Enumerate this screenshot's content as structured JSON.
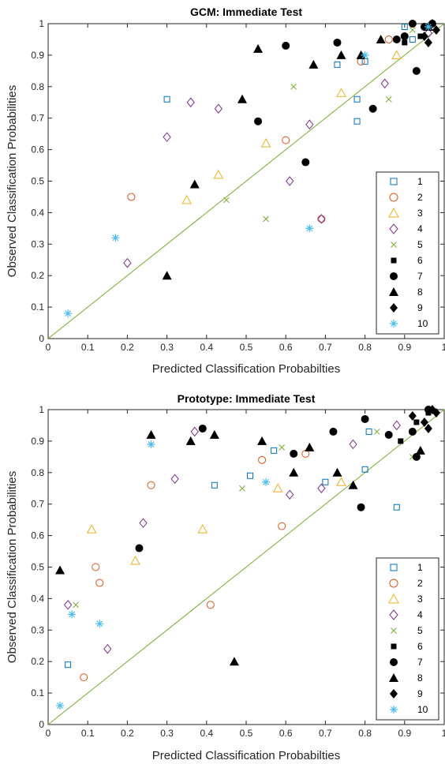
{
  "figure": {
    "background": "#ffffff"
  },
  "chart_data": [
    {
      "type": "scatter",
      "title": "GCM: Immediate Test",
      "xlabel": "Predicted Classification Probabilties",
      "ylabel": "Observed Classification Probabilities",
      "xlim": [
        0,
        1
      ],
      "ylim": [
        0,
        1
      ],
      "xticks": [
        "0",
        "0.1",
        "0.2",
        "0.3",
        "0.4",
        "0.5",
        "0.6",
        "0.7",
        "0.8",
        "0.9",
        "1"
      ],
      "yticks": [
        "0",
        "0.1",
        "0.2",
        "0.3",
        "0.4",
        "0.5",
        "0.6",
        "0.7",
        "0.8",
        "0.9",
        "1"
      ],
      "grid": false,
      "legend_position": "lower-right",
      "identity_line": {
        "from": [
          0,
          0
        ],
        "to": [
          1,
          1
        ],
        "color": "#77ac30"
      },
      "series": [
        {
          "name": "1",
          "marker": "square",
          "color": "#0072bd",
          "points": [
            [
              0.3,
              0.76
            ],
            [
              0.78,
              0.69
            ],
            [
              0.73,
              0.87
            ],
            [
              0.9,
              0.99
            ],
            [
              0.78,
              0.76
            ],
            [
              0.8,
              0.88
            ],
            [
              0.92,
              0.95
            ]
          ]
        },
        {
          "name": "2",
          "marker": "circle",
          "color": "#d95319",
          "points": [
            [
              0.21,
              0.45
            ],
            [
              0.6,
              0.63
            ],
            [
              0.69,
              0.38
            ],
            [
              0.86,
              0.95
            ],
            [
              0.79,
              0.88
            ]
          ]
        },
        {
          "name": "3",
          "marker": "triangle",
          "color": "#edb120",
          "points": [
            [
              0.35,
              0.44
            ],
            [
              0.43,
              0.52
            ],
            [
              0.55,
              0.62
            ],
            [
              0.74,
              0.78
            ],
            [
              0.88,
              0.9
            ]
          ]
        },
        {
          "name": "4",
          "marker": "diamond",
          "color": "#7e2f8e",
          "points": [
            [
              0.36,
              0.75
            ],
            [
              0.43,
              0.73
            ],
            [
              0.2,
              0.24
            ],
            [
              0.3,
              0.64
            ],
            [
              0.69,
              0.38
            ],
            [
              0.66,
              0.68
            ],
            [
              0.61,
              0.5
            ],
            [
              0.85,
              0.81
            ],
            [
              0.96,
              0.97
            ]
          ]
        },
        {
          "name": "5",
          "marker": "x",
          "color": "#77ac30",
          "points": [
            [
              0.55,
              0.38
            ],
            [
              0.62,
              0.8
            ],
            [
              0.86,
              0.76
            ],
            [
              0.92,
              0.98
            ],
            [
              0.45,
              0.44
            ]
          ]
        },
        {
          "name": "6",
          "marker": "filled-square",
          "color": "#000000",
          "points": [
            [
              0.96,
              0.99
            ],
            [
              0.9,
              0.94
            ],
            [
              0.94,
              0.96
            ]
          ]
        },
        {
          "name": "7",
          "marker": "filled-circle",
          "color": "#000000",
          "points": [
            [
              0.6,
              0.93
            ],
            [
              0.73,
              0.94
            ],
            [
              0.92,
              1.0
            ],
            [
              0.93,
              0.85
            ],
            [
              0.82,
              0.73
            ],
            [
              0.88,
              0.95
            ],
            [
              0.95,
              0.99
            ],
            [
              0.53,
              0.69
            ],
            [
              0.65,
              0.56
            ],
            [
              0.9,
              0.96
            ],
            [
              0.97,
              1.0
            ]
          ]
        },
        {
          "name": "8",
          "marker": "filled-triangle",
          "color": "#000000",
          "points": [
            [
              0.53,
              0.92
            ],
            [
              0.49,
              0.76
            ],
            [
              0.67,
              0.87
            ],
            [
              0.79,
              0.9
            ],
            [
              0.84,
              0.95
            ],
            [
              0.37,
              0.49
            ],
            [
              0.3,
              0.2
            ],
            [
              0.74,
              0.9
            ],
            [
              0.96,
              0.99
            ]
          ]
        },
        {
          "name": "9",
          "marker": "filled-diamond",
          "color": "#000000",
          "points": [
            [
              0.95,
              0.96
            ],
            [
              0.97,
              1.0
            ],
            [
              0.98,
              0.98
            ],
            [
              0.96,
              0.94
            ]
          ]
        },
        {
          "name": "10",
          "marker": "asterisk",
          "color": "#4dbeee",
          "points": [
            [
              0.17,
              0.32
            ],
            [
              0.66,
              0.35
            ],
            [
              0.05,
              0.08
            ],
            [
              0.8,
              0.9
            ],
            [
              0.96,
              0.99
            ]
          ]
        }
      ]
    },
    {
      "type": "scatter",
      "title": "Prototype: Immediate Test",
      "xlabel": "Predicted Classification Probabilties",
      "ylabel": "Observed Classification Probabilities",
      "xlim": [
        0,
        1
      ],
      "ylim": [
        0,
        1
      ],
      "xticks": [
        "0",
        "0.1",
        "0.2",
        "0.3",
        "0.4",
        "0.5",
        "0.6",
        "0.7",
        "0.8",
        "0.9",
        "1"
      ],
      "yticks": [
        "0",
        "0.1",
        "0.2",
        "0.3",
        "0.4",
        "0.5",
        "0.6",
        "0.7",
        "0.8",
        "0.9",
        "1"
      ],
      "grid": false,
      "legend_position": "lower-right",
      "identity_line": {
        "from": [
          0,
          0
        ],
        "to": [
          1,
          1
        ],
        "color": "#77ac30"
      },
      "series": [
        {
          "name": "1",
          "marker": "square",
          "color": "#0072bd",
          "points": [
            [
              0.05,
              0.19
            ],
            [
              0.42,
              0.76
            ],
            [
              0.51,
              0.79
            ],
            [
              0.7,
              0.77
            ],
            [
              0.88,
              0.69
            ],
            [
              0.57,
              0.87
            ],
            [
              0.8,
              0.81
            ],
            [
              0.81,
              0.93
            ]
          ]
        },
        {
          "name": "2",
          "marker": "circle",
          "color": "#d95319",
          "points": [
            [
              0.12,
              0.5
            ],
            [
              0.26,
              0.76
            ],
            [
              0.41,
              0.38
            ],
            [
              0.54,
              0.84
            ],
            [
              0.59,
              0.63
            ],
            [
              0.09,
              0.15
            ],
            [
              0.13,
              0.45
            ],
            [
              0.65,
              0.86
            ]
          ]
        },
        {
          "name": "3",
          "marker": "triangle",
          "color": "#edb120",
          "points": [
            [
              0.11,
              0.62
            ],
            [
              0.22,
              0.52
            ],
            [
              0.39,
              0.62
            ],
            [
              0.58,
              0.75
            ],
            [
              0.74,
              0.77
            ]
          ]
        },
        {
          "name": "4",
          "marker": "diamond",
          "color": "#7e2f8e",
          "points": [
            [
              0.05,
              0.38
            ],
            [
              0.15,
              0.24
            ],
            [
              0.24,
              0.64
            ],
            [
              0.32,
              0.78
            ],
            [
              0.37,
              0.93
            ],
            [
              0.61,
              0.73
            ],
            [
              0.69,
              0.75
            ],
            [
              0.77,
              0.89
            ],
            [
              0.88,
              0.95
            ]
          ]
        },
        {
          "name": "5",
          "marker": "x",
          "color": "#77ac30",
          "points": [
            [
              0.07,
              0.38
            ],
            [
              0.49,
              0.75
            ],
            [
              0.59,
              0.88
            ],
            [
              0.83,
              0.93
            ],
            [
              0.92,
              0.85
            ]
          ]
        },
        {
          "name": "6",
          "marker": "filled-square",
          "color": "#000000",
          "points": [
            [
              0.93,
              0.96
            ],
            [
              0.96,
              0.99
            ],
            [
              0.89,
              0.9
            ]
          ]
        },
        {
          "name": "7",
          "marker": "filled-circle",
          "color": "#000000",
          "points": [
            [
              0.23,
              0.56
            ],
            [
              0.39,
              0.94
            ],
            [
              0.62,
              0.86
            ],
            [
              0.72,
              0.93
            ],
            [
              0.8,
              0.97
            ],
            [
              0.86,
              0.92
            ],
            [
              0.79,
              0.69
            ],
            [
              0.92,
              0.93
            ],
            [
              0.96,
              1.0
            ],
            [
              0.93,
              0.85
            ]
          ]
        },
        {
          "name": "8",
          "marker": "filled-triangle",
          "color": "#000000",
          "points": [
            [
              0.03,
              0.49
            ],
            [
              0.26,
              0.92
            ],
            [
              0.36,
              0.9
            ],
            [
              0.42,
              0.92
            ],
            [
              0.47,
              0.2
            ],
            [
              0.54,
              0.9
            ],
            [
              0.62,
              0.8
            ],
            [
              0.66,
              0.88
            ],
            [
              0.73,
              0.8
            ],
            [
              0.77,
              0.76
            ],
            [
              0.94,
              0.87
            ]
          ]
        },
        {
          "name": "9",
          "marker": "filled-diamond",
          "color": "#000000",
          "points": [
            [
              0.92,
              0.98
            ],
            [
              0.95,
              0.96
            ],
            [
              0.97,
              1.0
            ],
            [
              0.98,
              0.99
            ],
            [
              0.96,
              0.94
            ]
          ]
        },
        {
          "name": "10",
          "marker": "asterisk",
          "color": "#4dbeee",
          "points": [
            [
              0.06,
              0.35
            ],
            [
              0.13,
              0.32
            ],
            [
              0.26,
              0.89
            ],
            [
              0.55,
              0.77
            ],
            [
              0.03,
              0.06
            ]
          ]
        }
      ]
    }
  ]
}
